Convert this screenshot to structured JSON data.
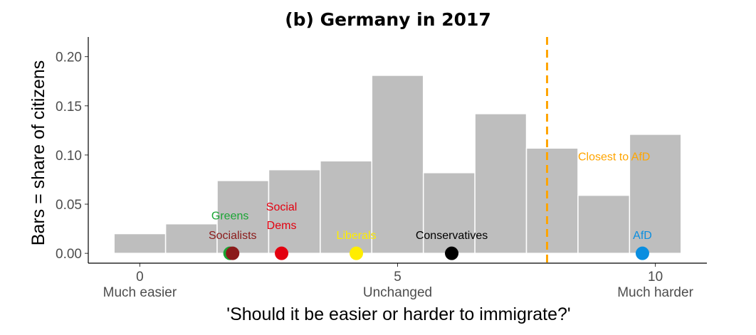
{
  "chart_data": {
    "type": "bar",
    "title": "(b) Germany in 2017",
    "xlabel": "'Should it be easier or harder to immigrate?'",
    "ylabel": "Bars = share of citizens",
    "xlim": [
      -1,
      11
    ],
    "ylim": [
      -0.01,
      0.22
    ],
    "x_ticks": [
      0,
      5,
      10
    ],
    "x_tick_labels": [
      "0",
      "5",
      "10"
    ],
    "x_tick_sublabels": [
      "Much easier",
      "Unchanged",
      "Much harder"
    ],
    "y_ticks": [
      0.0,
      0.05,
      0.1,
      0.15,
      0.2
    ],
    "y_tick_labels": [
      "0.00",
      "0.05",
      "0.10",
      "0.15",
      "0.20"
    ],
    "categories": [
      0,
      1,
      2,
      3,
      4,
      5,
      6,
      7,
      8,
      9,
      10
    ],
    "values": [
      0.02,
      0.03,
      0.074,
      0.085,
      0.094,
      0.181,
      0.082,
      0.142,
      0.107,
      0.059,
      0.121
    ],
    "bar_color": "#bebebe",
    "parties": [
      {
        "name": "Greens",
        "x": 1.75,
        "color": "#1aa534",
        "label_y": 0.039
      },
      {
        "name": "Socialists",
        "x": 1.8,
        "color": "#8b1a1a",
        "label_y": 0.019
      },
      {
        "name": "Social Dems",
        "lines": [
          "Social",
          "Dems"
        ],
        "x": 2.75,
        "color": "#e3000f",
        "label_y": 0.048
      },
      {
        "name": "Liberals",
        "x": 4.2,
        "color": "#ffed00",
        "label_y": 0.019
      },
      {
        "name": "Conservatives",
        "x": 6.05,
        "color": "#000000",
        "label_y": 0.019
      },
      {
        "name": "AfD",
        "x": 9.75,
        "color": "#0a8ee0",
        "label_y": 0.019
      }
    ],
    "reference_line": {
      "x": 7.9,
      "label": "Closest to AfD",
      "color": "#ffa500",
      "label_x": 9.2,
      "label_y": 0.099
    }
  }
}
